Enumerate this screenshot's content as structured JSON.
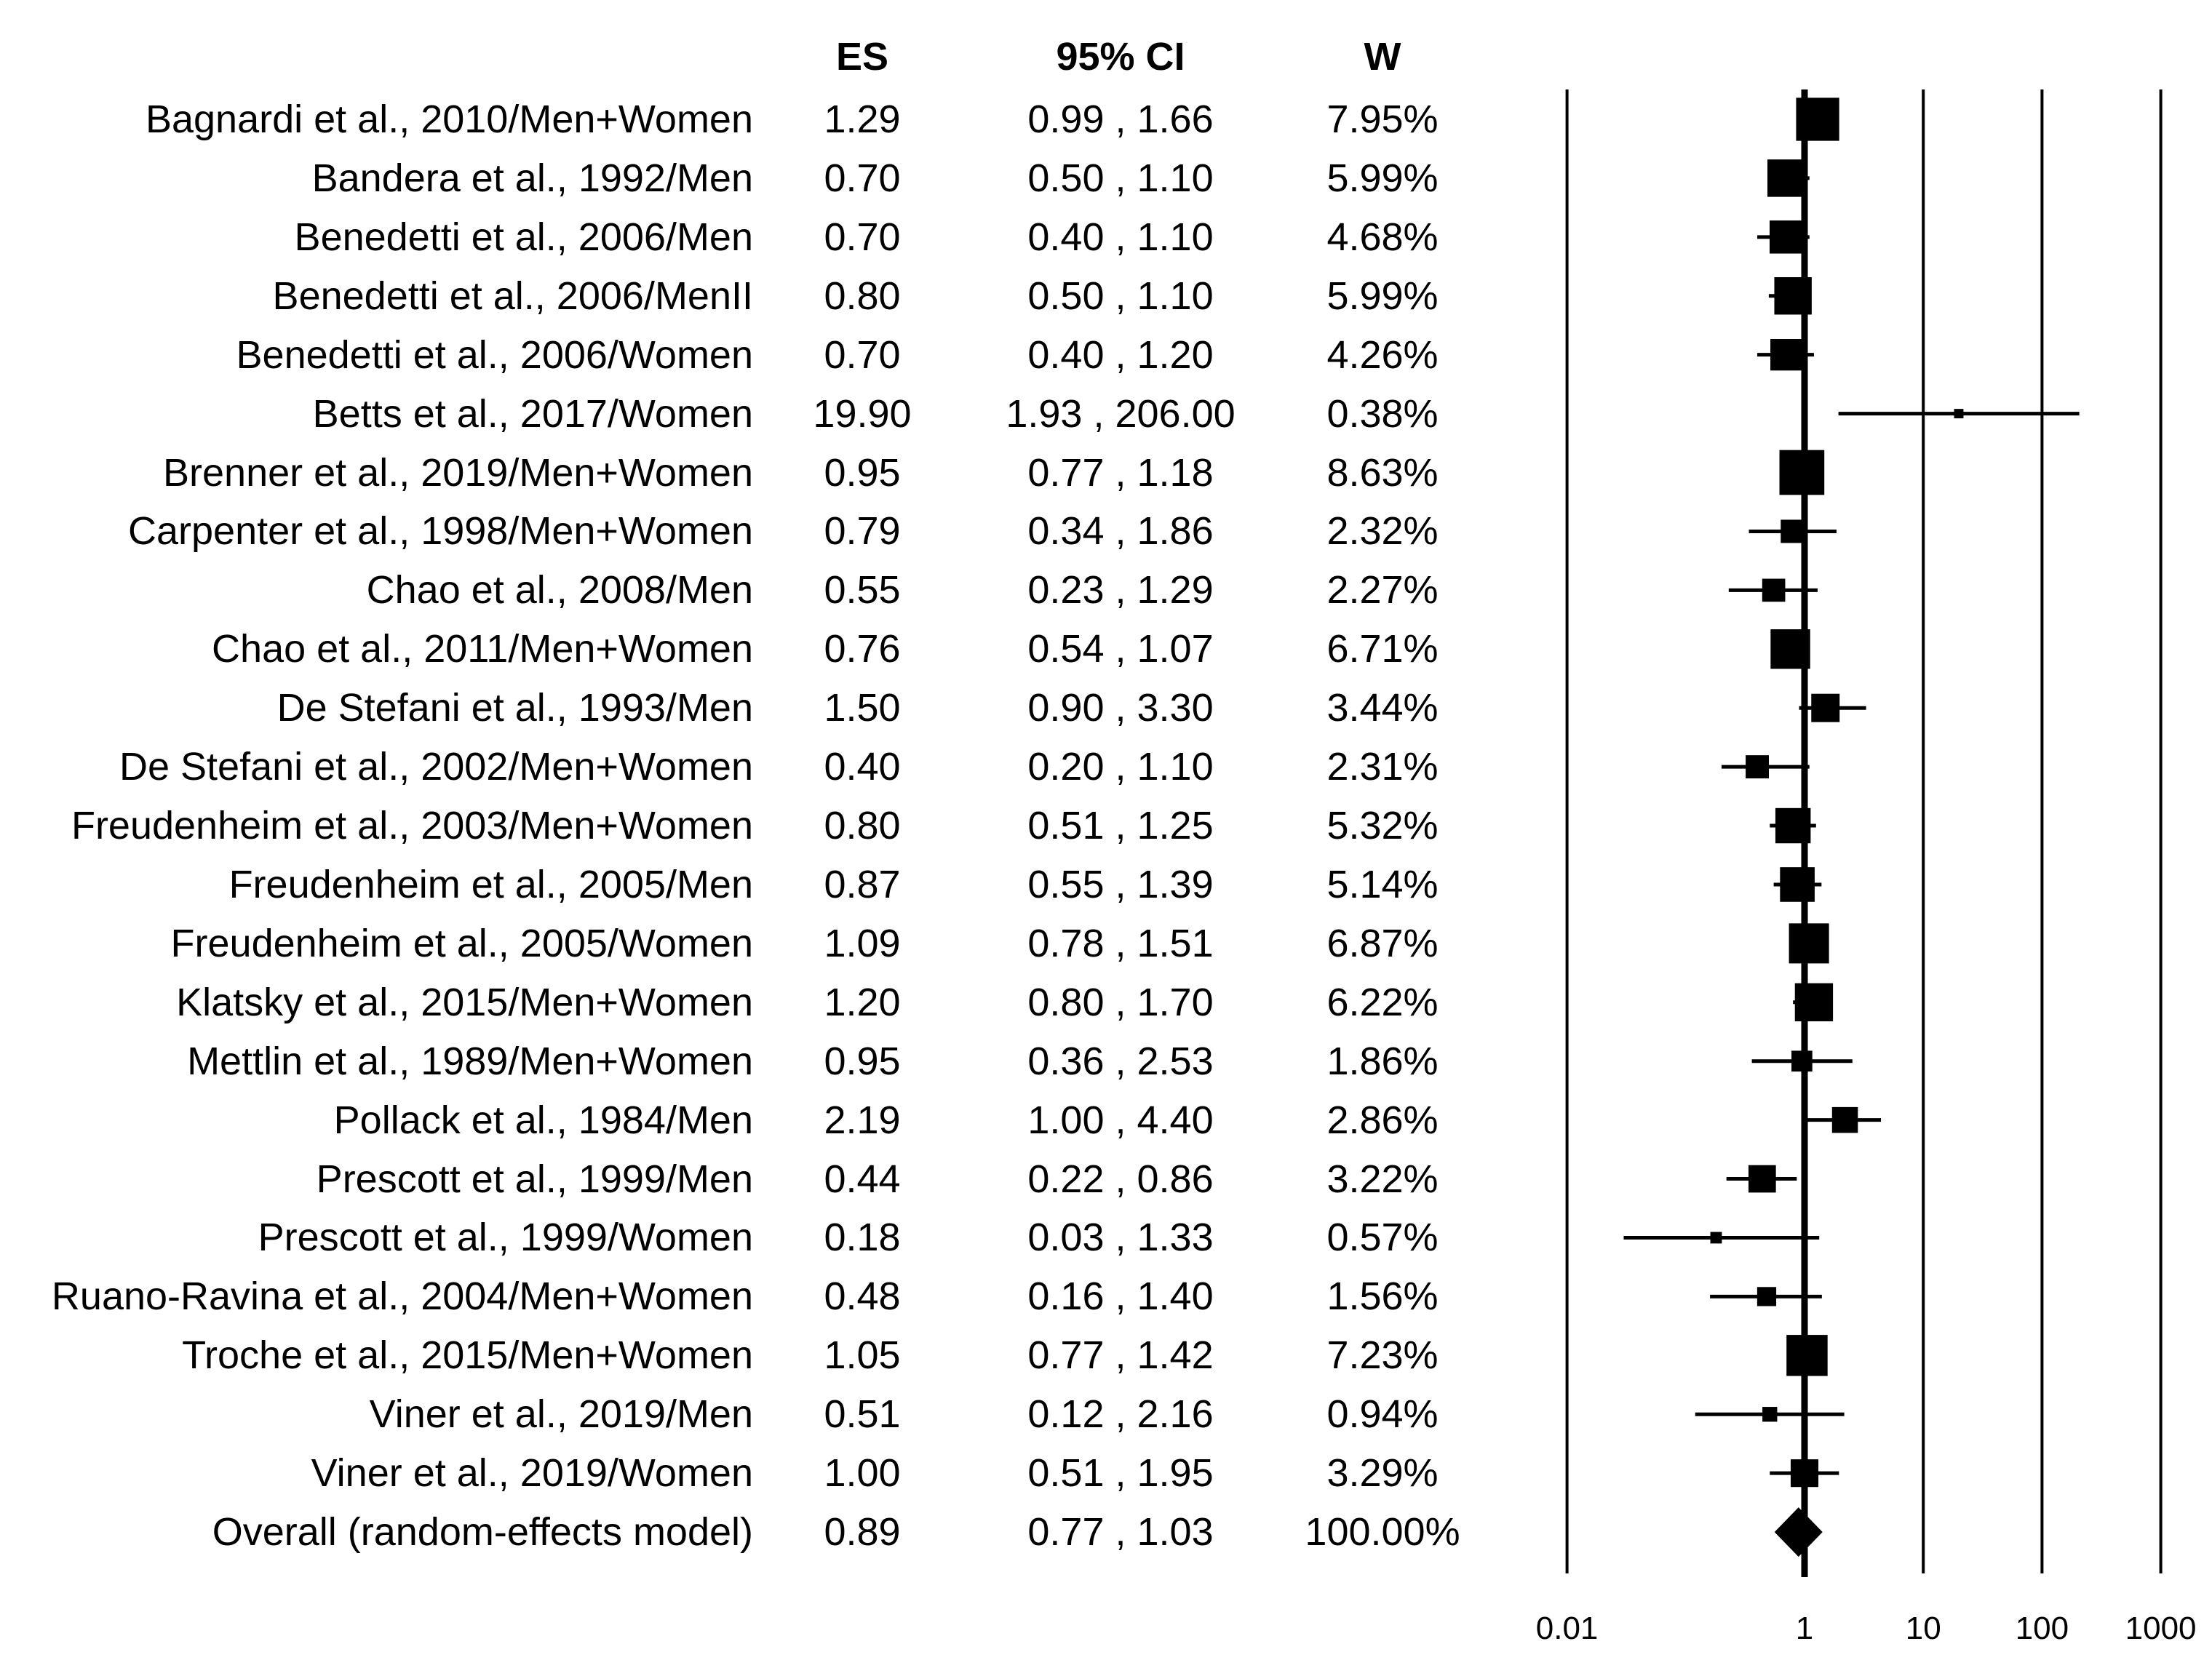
{
  "page": {
    "background": "#ffffff",
    "text_color": "#000000"
  },
  "table": {
    "headers": {
      "es": "ES",
      "ci": "95% CI",
      "w": "W"
    }
  },
  "chart_data": {
    "type": "forest",
    "x_scale": "log10",
    "axis": {
      "tick_labels": [
        "0.01",
        "1",
        "10",
        "100",
        "1000"
      ],
      "tick_values": [
        0.01,
        1,
        10,
        100,
        1000
      ],
      "null_line_value": 1,
      "range": [
        0.01,
        1000
      ],
      "grid": "vertical-lines"
    },
    "marker_color": "#000000",
    "legend": "none",
    "rows": [
      {
        "label": "Bagnardi et al., 2010/Men+Women",
        "es_text": "1.29",
        "ci_text": "0.99 , 1.66",
        "w_text": "7.95%",
        "es": 1.29,
        "lo": 0.99,
        "hi": 1.66,
        "weight": 7.95,
        "marker": "square"
      },
      {
        "label": "Bandera et al., 1992/Men",
        "es_text": "0.70",
        "ci_text": "0.50 , 1.10",
        "w_text": "5.99%",
        "es": 0.7,
        "lo": 0.5,
        "hi": 1.1,
        "weight": 5.99,
        "marker": "square"
      },
      {
        "label": "Benedetti et al., 2006/Men",
        "es_text": "0.70",
        "ci_text": "0.40 , 1.10",
        "w_text": "4.68%",
        "es": 0.7,
        "lo": 0.4,
        "hi": 1.1,
        "weight": 4.68,
        "marker": "square"
      },
      {
        "label": "Benedetti et al., 2006/MenII",
        "es_text": "0.80",
        "ci_text": "0.50 , 1.10",
        "w_text": "5.99%",
        "es": 0.8,
        "lo": 0.5,
        "hi": 1.1,
        "weight": 5.99,
        "marker": "square"
      },
      {
        "label": "Benedetti et al., 2006/Women",
        "es_text": "0.70",
        "ci_text": "0.40 , 1.20",
        "w_text": "4.26%",
        "es": 0.7,
        "lo": 0.4,
        "hi": 1.2,
        "weight": 4.26,
        "marker": "square"
      },
      {
        "label": "Betts et al., 2017/Women",
        "es_text": "19.90",
        "ci_text": "1.93 , 206.00",
        "w_text": "0.38%",
        "es": 19.9,
        "lo": 1.93,
        "hi": 206.0,
        "weight": 0.38,
        "marker": "square"
      },
      {
        "label": "Brenner et al., 2019/Men+Women",
        "es_text": "0.95",
        "ci_text": "0.77 , 1.18",
        "w_text": "8.63%",
        "es": 0.95,
        "lo": 0.77,
        "hi": 1.18,
        "weight": 8.63,
        "marker": "square"
      },
      {
        "label": "Carpenter et al., 1998/Men+Women",
        "es_text": "0.79",
        "ci_text": "0.34 , 1.86",
        "w_text": "2.32%",
        "es": 0.79,
        "lo": 0.34,
        "hi": 1.86,
        "weight": 2.32,
        "marker": "square"
      },
      {
        "label": "Chao et al., 2008/Men",
        "es_text": "0.55",
        "ci_text": "0.23 , 1.29",
        "w_text": "2.27%",
        "es": 0.55,
        "lo": 0.23,
        "hi": 1.29,
        "weight": 2.27,
        "marker": "square"
      },
      {
        "label": "Chao et al., 2011/Men+Women",
        "es_text": "0.76",
        "ci_text": "0.54 , 1.07",
        "w_text": "6.71%",
        "es": 0.76,
        "lo": 0.54,
        "hi": 1.07,
        "weight": 6.71,
        "marker": "square"
      },
      {
        "label": "De Stefani et al., 1993/Men",
        "es_text": "1.50",
        "ci_text": "0.90 , 3.30",
        "w_text": "3.44%",
        "es": 1.5,
        "lo": 0.9,
        "hi": 3.3,
        "weight": 3.44,
        "marker": "square"
      },
      {
        "label": "De Stefani et al., 2002/Men+Women",
        "es_text": "0.40",
        "ci_text": "0.20 , 1.10",
        "w_text": "2.31%",
        "es": 0.4,
        "lo": 0.2,
        "hi": 1.1,
        "weight": 2.31,
        "marker": "square"
      },
      {
        "label": "Freudenheim et al., 2003/Men+Women",
        "es_text": "0.80",
        "ci_text": "0.51 , 1.25",
        "w_text": "5.32%",
        "es": 0.8,
        "lo": 0.51,
        "hi": 1.25,
        "weight": 5.32,
        "marker": "square"
      },
      {
        "label": "Freudenheim et al., 2005/Men",
        "es_text": "0.87",
        "ci_text": "0.55 , 1.39",
        "w_text": "5.14%",
        "es": 0.87,
        "lo": 0.55,
        "hi": 1.39,
        "weight": 5.14,
        "marker": "square"
      },
      {
        "label": "Freudenheim et al., 2005/Women",
        "es_text": "1.09",
        "ci_text": "0.78 , 1.51",
        "w_text": "6.87%",
        "es": 1.09,
        "lo": 0.78,
        "hi": 1.51,
        "weight": 6.87,
        "marker": "square"
      },
      {
        "label": "Klatsky et al., 2015/Men+Women",
        "es_text": "1.20",
        "ci_text": "0.80 , 1.70",
        "w_text": "6.22%",
        "es": 1.2,
        "lo": 0.8,
        "hi": 1.7,
        "weight": 6.22,
        "marker": "square"
      },
      {
        "label": "Mettlin et al., 1989/Men+Women",
        "es_text": "0.95",
        "ci_text": "0.36 , 2.53",
        "w_text": "1.86%",
        "es": 0.95,
        "lo": 0.36,
        "hi": 2.53,
        "weight": 1.86,
        "marker": "square"
      },
      {
        "label": "Pollack et al., 1984/Men",
        "es_text": "2.19",
        "ci_text": "1.00 , 4.40",
        "w_text": "2.86%",
        "es": 2.19,
        "lo": 1.0,
        "hi": 4.4,
        "weight": 2.86,
        "marker": "square"
      },
      {
        "label": "Prescott et al., 1999/Men",
        "es_text": "0.44",
        "ci_text": "0.22 , 0.86",
        "w_text": "3.22%",
        "es": 0.44,
        "lo": 0.22,
        "hi": 0.86,
        "weight": 3.22,
        "marker": "square"
      },
      {
        "label": "Prescott et al., 1999/Women",
        "es_text": "0.18",
        "ci_text": "0.03 , 1.33",
        "w_text": "0.57%",
        "es": 0.18,
        "lo": 0.03,
        "hi": 1.33,
        "weight": 0.57,
        "marker": "square"
      },
      {
        "label": "Ruano-Ravina et al., 2004/Men+Women",
        "es_text": "0.48",
        "ci_text": "0.16 , 1.40",
        "w_text": "1.56%",
        "es": 0.48,
        "lo": 0.16,
        "hi": 1.4,
        "weight": 1.56,
        "marker": "square"
      },
      {
        "label": "Troche et al., 2015/Men+Women",
        "es_text": "1.05",
        "ci_text": "0.77 , 1.42",
        "w_text": "7.23%",
        "es": 1.05,
        "lo": 0.77,
        "hi": 1.42,
        "weight": 7.23,
        "marker": "square"
      },
      {
        "label": "Viner et al., 2019/Men",
        "es_text": "0.51",
        "ci_text": "0.12 , 2.16",
        "w_text": "0.94%",
        "es": 0.51,
        "lo": 0.12,
        "hi": 2.16,
        "weight": 0.94,
        "marker": "square"
      },
      {
        "label": "Viner et al., 2019/Women",
        "es_text": "1.00",
        "ci_text": "0.51 , 1.95",
        "w_text": "3.29%",
        "es": 1.0,
        "lo": 0.51,
        "hi": 1.95,
        "weight": 3.29,
        "marker": "square"
      },
      {
        "label": "Overall (random-effects model)",
        "es_text": "0.89",
        "ci_text": "0.77 , 1.03",
        "w_text": "100.00%",
        "es": 0.89,
        "lo": 0.77,
        "hi": 1.03,
        "weight": 100.0,
        "marker": "diamond"
      }
    ]
  }
}
